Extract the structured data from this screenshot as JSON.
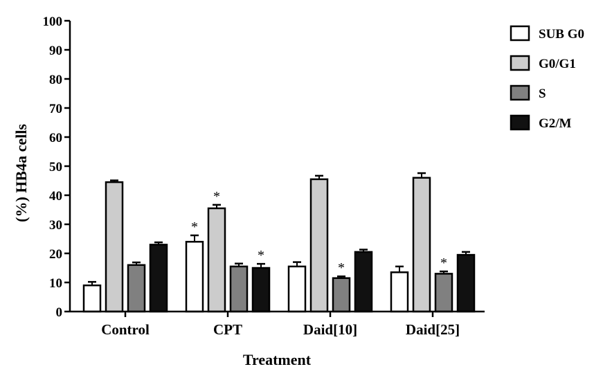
{
  "chart_data": {
    "type": "bar",
    "xlabel": "Treatment",
    "ylabel": "(%) HB4a cells",
    "ylim": [
      0,
      100
    ],
    "yticks": [
      0,
      10,
      20,
      30,
      40,
      50,
      60,
      70,
      80,
      90,
      100
    ],
    "categories": [
      "Control",
      "CPT",
      "Daid[10]",
      "Daid[25]"
    ],
    "legend_position": "right",
    "series": [
      {
        "name": "SUB G0",
        "color": "#ffffff",
        "values": [
          9,
          24,
          15.5,
          13.5
        ],
        "errors": [
          1.2,
          2.2,
          1.5,
          2
        ],
        "significant": [
          false,
          true,
          false,
          false
        ]
      },
      {
        "name": "G0/G1",
        "color": "#cccccc",
        "values": [
          44.5,
          35.5,
          45.5,
          46
        ],
        "errors": [
          0.6,
          1.2,
          1.2,
          1.6
        ],
        "significant": [
          false,
          true,
          false,
          false
        ]
      },
      {
        "name": "S",
        "color": "#808080",
        "values": [
          16,
          15.5,
          11.5,
          13
        ],
        "errors": [
          0.9,
          1,
          0.6,
          0.8
        ],
        "significant": [
          false,
          false,
          true,
          true
        ]
      },
      {
        "name": "G2/M",
        "color": "#111111",
        "values": [
          23,
          15,
          20.5,
          19.5
        ],
        "errors": [
          0.8,
          1.4,
          0.8,
          1
        ],
        "significant": [
          false,
          true,
          false,
          false
        ]
      }
    ],
    "significance_marker": "*"
  }
}
